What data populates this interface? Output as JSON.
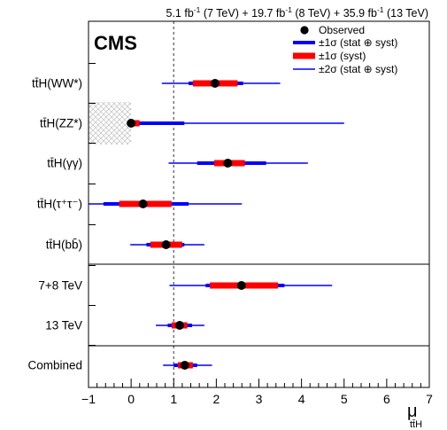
{
  "header": {
    "parts": [
      {
        "t": "5.1 fb",
        "k": "n"
      },
      {
        "t": "-1",
        "k": "sup"
      },
      {
        "t": " (7 TeV) + 19.7 fb",
        "k": "n"
      },
      {
        "t": "-1",
        "k": "sup"
      },
      {
        "t": " (8 TeV) + 35.9 fb",
        "k": "n"
      },
      {
        "t": "-1",
        "k": "sup"
      },
      {
        "t": " (13 TeV)",
        "k": "n"
      }
    ]
  },
  "cms_label": "CMS",
  "legend": {
    "observed": "Observed",
    "stat_syst_1s": "±1σ (stat ⊕ syst)",
    "syst_1s": "±1σ (syst)",
    "stat_syst_2s": "±2σ (stat ⊕ syst)"
  },
  "colors": {
    "blue": "#0000ff",
    "red": "#ff0000",
    "point": "#000000",
    "hatch": "#c8c8c8",
    "sm_line": "#555555"
  },
  "chart_data": {
    "type": "scatter",
    "xlim": [
      -1,
      7
    ],
    "xticks": [
      "−1",
      "0",
      "1",
      "2",
      "3",
      "4",
      "5",
      "6",
      "7"
    ],
    "xlabel": {
      "main": "μ",
      "sub": "tt̄H"
    },
    "sm_reference": 1,
    "series": [
      {
        "label": "tt̄H(WW*)",
        "mu": 1.97,
        "syst": [
          1.45,
          2.5
        ],
        "stat_syst_1s": [
          1.35,
          2.63
        ],
        "stat_syst_2s": [
          0.72,
          3.5
        ]
      },
      {
        "label": "tt̄H(ZZ*)",
        "mu": 0.0,
        "syst": [
          0.0,
          0.2
        ],
        "stat_syst_1s": [
          0.0,
          1.25
        ],
        "stat_syst_2s": [
          0.0,
          5.0
        ]
      },
      {
        "label": "tt̄H(γγ)",
        "mu": 2.27,
        "syst": [
          1.95,
          2.67
        ],
        "stat_syst_1s": [
          1.55,
          3.17
        ],
        "stat_syst_2s": [
          0.88,
          4.15
        ]
      },
      {
        "label": "tt̄H(τ⁺τ⁻)",
        "mu": 0.28,
        "syst": [
          -0.28,
          0.95
        ],
        "stat_syst_1s": [
          -0.65,
          1.35
        ],
        "stat_syst_2s": [
          -1.0,
          2.6
        ]
      },
      {
        "label": "tt̄H(bb̄)",
        "mu": 0.82,
        "syst": [
          0.45,
          1.2
        ],
        "stat_syst_1s": [
          0.36,
          1.25
        ],
        "stat_syst_2s": [
          -0.02,
          1.72
        ]
      },
      {
        "label": "7+8 TeV",
        "mu": 2.59,
        "syst": [
          1.85,
          3.45
        ],
        "stat_syst_1s": [
          1.75,
          3.6
        ],
        "stat_syst_2s": [
          0.9,
          4.72
        ]
      },
      {
        "label": "13 TeV",
        "mu": 1.14,
        "syst": [
          0.95,
          1.32
        ],
        "stat_syst_1s": [
          0.86,
          1.43
        ],
        "stat_syst_2s": [
          0.58,
          1.72
        ]
      },
      {
        "label": "Combined",
        "mu": 1.26,
        "syst": [
          1.1,
          1.45
        ],
        "stat_syst_1s": [
          1.0,
          1.55
        ],
        "stat_syst_2s": [
          0.75,
          1.9
        ]
      }
    ],
    "excluded_region": {
      "for": "tt̄H(ZZ*)",
      "x": [
        -1,
        0
      ]
    },
    "grid": false,
    "legend_position": "top-right"
  }
}
